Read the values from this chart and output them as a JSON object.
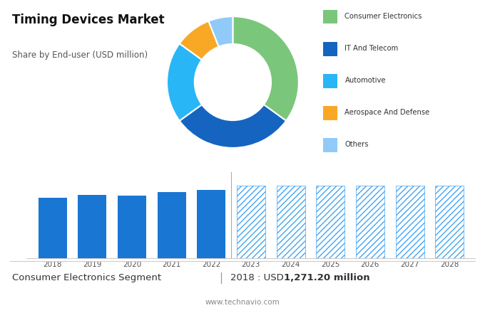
{
  "title": "Timing Devices Market",
  "subtitle": "Share by End-user (USD million)",
  "bg_color_top": "#e0e0e0",
  "bg_color_bottom": "#ffffff",
  "pie_values": [
    35,
    30,
    20,
    9,
    6
  ],
  "pie_colors": [
    "#7ac67a",
    "#1565c0",
    "#29b6f6",
    "#f9a825",
    "#90caf9"
  ],
  "pie_labels": [
    "Consumer Electronics",
    "IT And Telecom",
    "Automotive",
    "Aerospace And Defense",
    "Others"
  ],
  "bar_years": [
    2018,
    2019,
    2020,
    2021,
    2022,
    2023,
    2024,
    2025,
    2026,
    2027,
    2028
  ],
  "bar_values_hist": [
    1271.2,
    1330,
    1310,
    1380,
    1430
  ],
  "bar_values_fore": [
    1520,
    1520,
    1520,
    1520,
    1520,
    1520
  ],
  "bar_color_solid": "#1976d2",
  "bar_color_hatch_edge": "#42a5f5",
  "hatch_pattern": "////",
  "footer_left": "Consumer Electronics Segment",
  "footer_right_pre": "2018 : USD ",
  "footer_right_bold": "1,271.20 million",
  "footer_url": "www.technavio.com",
  "ylim": [
    0,
    1800
  ],
  "split_year_idx": 5
}
